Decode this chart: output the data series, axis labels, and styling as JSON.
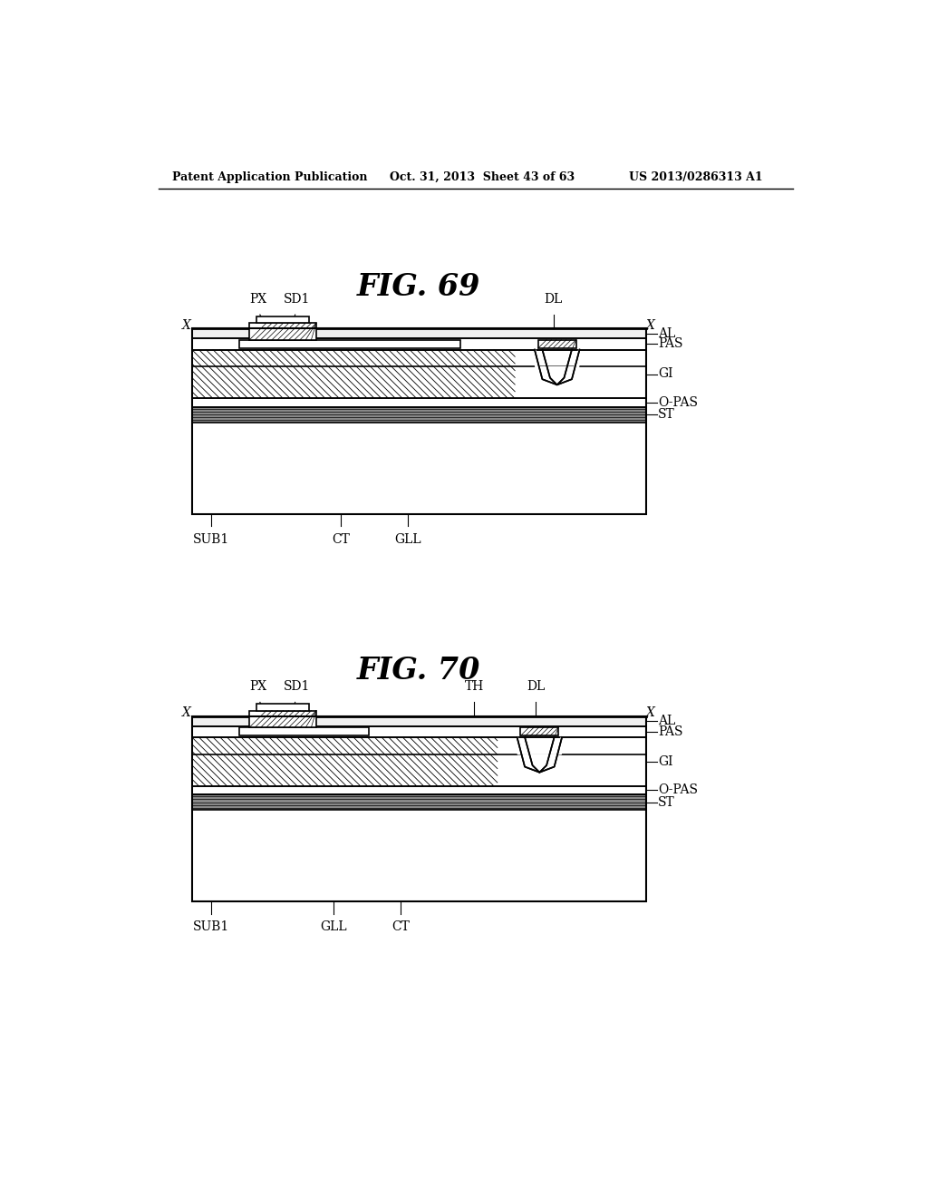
{
  "header_left": "Patent Application Publication",
  "header_center": "Oct. 31, 2013  Sheet 43 of 63",
  "header_right": "US 2013/0286313 A1",
  "fig69_title": "FIG. 69",
  "fig70_title": "FIG. 70",
  "background_color": "#ffffff",
  "line_color": "#000000"
}
